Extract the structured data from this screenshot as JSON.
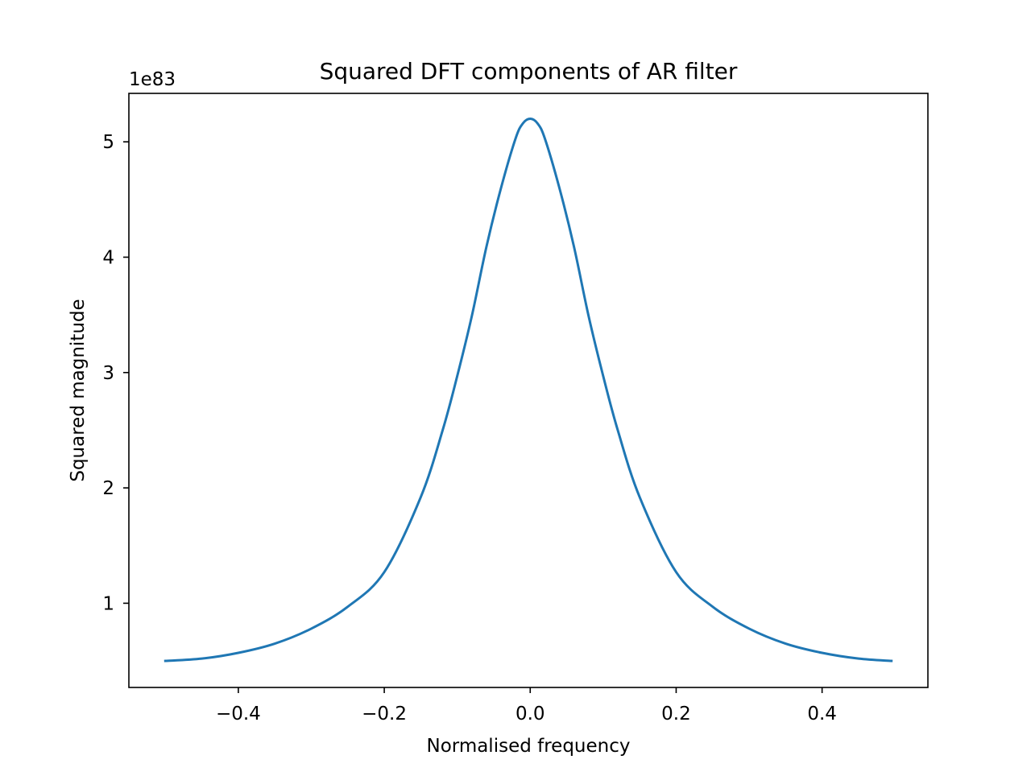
{
  "chart_data": {
    "type": "line",
    "title": "Squared DFT components of AR filter",
    "xlabel": "Normalised frequency",
    "ylabel": "Squared magnitude",
    "y_offset_label": "1e83",
    "xlim": [
      -0.55,
      0.545
    ],
    "ylim": [
      0.27,
      5.42
    ],
    "y_scale_factor": "1e83",
    "grid": false,
    "legend": "none",
    "line_color": "#1f77b4",
    "x_ticks": [
      {
        "value": -0.4,
        "label": "−0.4"
      },
      {
        "value": -0.2,
        "label": "−0.2"
      },
      {
        "value": 0.0,
        "label": "0.0"
      },
      {
        "value": 0.2,
        "label": "0.2"
      },
      {
        "value": 0.4,
        "label": "0.4"
      }
    ],
    "y_ticks": [
      {
        "value": 1,
        "label": "1"
      },
      {
        "value": 2,
        "label": "2"
      },
      {
        "value": 3,
        "label": "3"
      },
      {
        "value": 4,
        "label": "4"
      },
      {
        "value": 5,
        "label": "5"
      }
    ],
    "series": [
      {
        "x": [
          -0.5,
          -0.45,
          -0.4,
          -0.35,
          -0.3,
          -0.25,
          -0.2,
          -0.15,
          -0.12,
          -0.1,
          -0.08,
          -0.06,
          -0.04,
          -0.02,
          -0.01,
          0.0,
          0.01,
          0.02,
          0.04,
          0.06,
          0.08,
          0.1,
          0.12,
          0.15,
          0.2,
          0.25,
          0.3,
          0.35,
          0.4,
          0.45,
          0.495
        ],
        "y": [
          0.5,
          0.52,
          0.57,
          0.65,
          0.78,
          0.97,
          1.27,
          1.92,
          2.5,
          2.97,
          3.49,
          4.09,
          4.6,
          5.03,
          5.16,
          5.2,
          5.16,
          5.03,
          4.6,
          4.09,
          3.49,
          2.97,
          2.5,
          1.92,
          1.27,
          0.97,
          0.78,
          0.65,
          0.57,
          0.52,
          0.5
        ]
      }
    ]
  }
}
